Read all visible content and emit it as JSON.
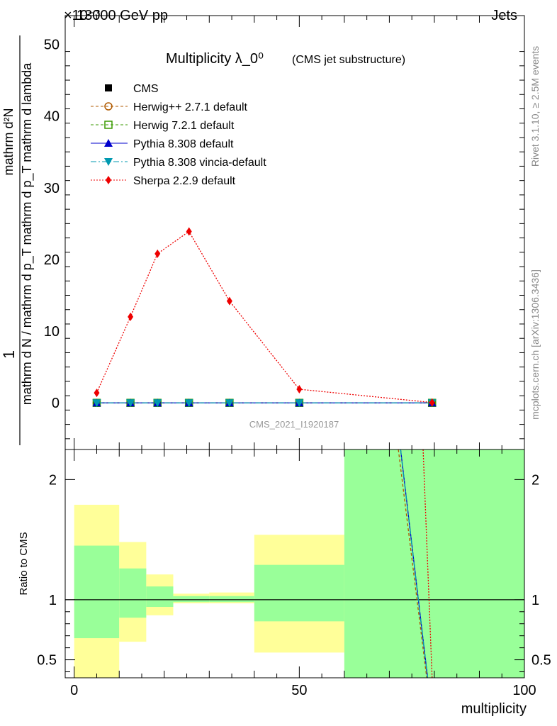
{
  "header": {
    "left": "13000 GeV pp",
    "right": "Jets",
    "exponent": "×10⁻³"
  },
  "side_labels": {
    "rivet": "Rivet 3.1.10, ≥ 2.5M events",
    "mcplots": "mcplots.cern.ch [arXiv:1306.3436]"
  },
  "colors": {
    "herwigpp": "#b05a00",
    "herwig7": "#3a9a00",
    "pythia": "#0000cc",
    "vincia": "#0099b0",
    "sherpa": "#ee0000",
    "band_green": "#99ff99",
    "band_yellow": "#ffff99"
  },
  "chart_data": [
    {
      "type": "line",
      "title": "Multiplicity λ_0⁰",
      "subtitle": "(CMS jet substructure)",
      "watermark": "CMS_2021_I1920187",
      "ylabel_num": "1",
      "ylabel_den": "mathrm d N / mathrm d p_T mathrm d p_T mathrm d lambda",
      "ylabel_top": "mathrm d²N",
      "ylim": [
        -6.5,
        54
      ],
      "xlim": [
        -2,
        100
      ],
      "y_ticks": [
        0,
        10,
        20,
        30,
        40,
        50
      ],
      "x": [
        5,
        12.5,
        18.5,
        25.5,
        34.5,
        50,
        79.5
      ],
      "series": [
        {
          "name": "CMS",
          "values": [
            0,
            0,
            0,
            0,
            0,
            0,
            0
          ]
        },
        {
          "name": "Herwig++ 2.7.1 default",
          "values": [
            0,
            0,
            0,
            0,
            0,
            0,
            0
          ]
        },
        {
          "name": "Herwig 7.2.1 default",
          "values": [
            0,
            0,
            0,
            0,
            0,
            0,
            0
          ]
        },
        {
          "name": "Pythia 8.308 default",
          "values": [
            0,
            0,
            0,
            0,
            0,
            0,
            0
          ]
        },
        {
          "name": "Pythia 8.308 vincia-default",
          "values": [
            0,
            0,
            0,
            0,
            0,
            0,
            0
          ]
        },
        {
          "name": "Sherpa 2.2.9 default",
          "values": [
            1.4,
            12.0,
            20.8,
            23.9,
            14.2,
            1.9,
            0.05
          ]
        }
      ]
    },
    {
      "type": "area",
      "ylabel": "Ratio to CMS",
      "xlabel": "multiplicity",
      "ylim": [
        0.35,
        2.25
      ],
      "xlim": [
        -2,
        100
      ],
      "y_ticks": [
        0.5,
        1,
        2
      ],
      "x_ticks": [
        0,
        50,
        100
      ],
      "bins": [
        {
          "lo": 0,
          "hi": 10,
          "green": [
            0.68,
            1.45
          ],
          "yellow": [
            0.35,
            1.79
          ]
        },
        {
          "lo": 10,
          "hi": 16,
          "green": [
            0.85,
            1.26
          ],
          "yellow": [
            0.65,
            1.48
          ]
        },
        {
          "lo": 16,
          "hi": 22,
          "green": [
            0.94,
            1.11
          ],
          "yellow": [
            0.87,
            1.21
          ]
        },
        {
          "lo": 22,
          "hi": 30,
          "green": [
            0.98,
            1.03
          ],
          "yellow": [
            0.97,
            1.05
          ]
        },
        {
          "lo": 30,
          "hi": 40,
          "green": [
            0.98,
            1.03
          ],
          "yellow": [
            0.97,
            1.06
          ]
        },
        {
          "lo": 40,
          "hi": 60,
          "green": [
            0.82,
            1.29
          ],
          "yellow": [
            0.56,
            1.54
          ]
        },
        {
          "lo": 60,
          "hi": 100,
          "green": [
            0.35,
            2.25
          ],
          "yellow": [
            0.35,
            2.25
          ]
        }
      ],
      "ratio_lines": [
        {
          "name": "Pythia 8.308 default",
          "points": [
            [
              72.5,
              2.25
            ],
            [
              78.5,
              0.35
            ]
          ]
        },
        {
          "name": "Pythia 8.308 vincia-default",
          "points": [
            [
              72.5,
              2.25
            ],
            [
              78.5,
              0.35
            ]
          ]
        },
        {
          "name": "Herwig++ 2.7.1 default",
          "points": [
            [
              72.0,
              2.25
            ],
            [
              78.3,
              0.35
            ]
          ]
        },
        {
          "name": "Sherpa 2.2.9 default",
          "points": [
            [
              77.5,
              2.25
            ],
            [
              79.5,
              0.35
            ]
          ]
        }
      ]
    }
  ]
}
